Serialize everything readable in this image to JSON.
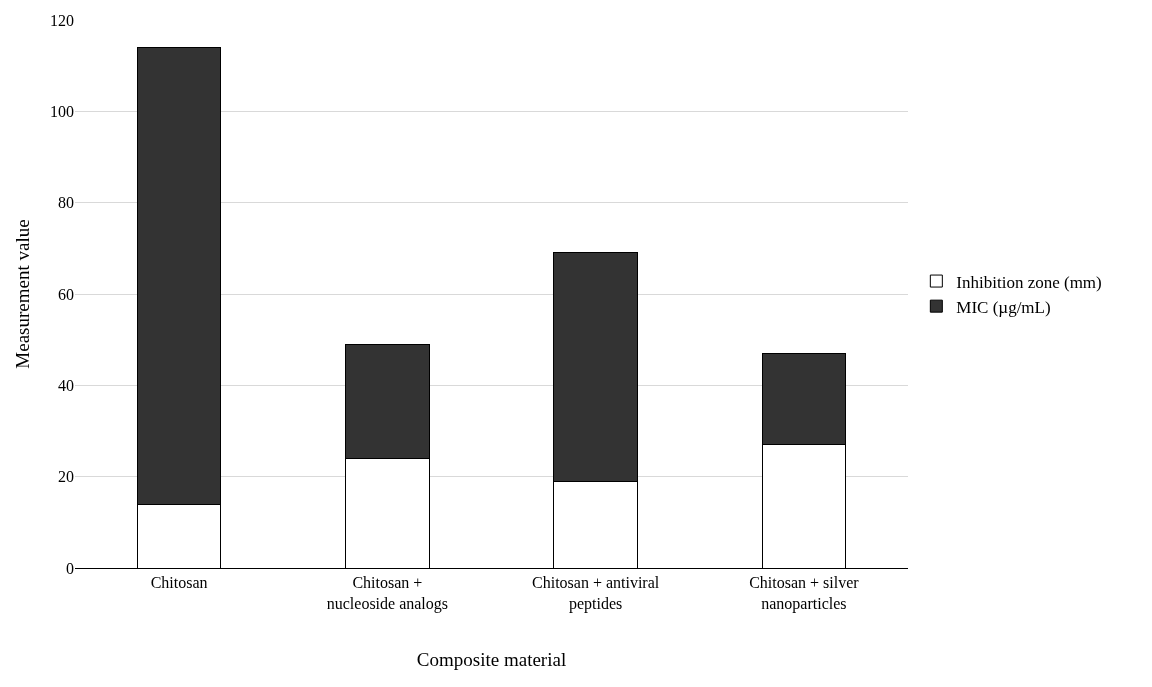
{
  "chart_data": {
    "type": "bar",
    "stacked": true,
    "xlabel": "Composite material",
    "ylabel": "Measurement value",
    "categories": [
      "Chitosan",
      "Chitosan + nucleoside analogs",
      "Chitosan + antiviral peptides",
      "Chitosan + silver nanoparticles"
    ],
    "series": [
      {
        "name": "Inhibition zone (mm)",
        "color": "#ffffff",
        "values": [
          14,
          24,
          19,
          27
        ]
      },
      {
        "name": "MIC (µg/mL)",
        "color": "#333333",
        "values": [
          100,
          25,
          50,
          20
        ]
      }
    ],
    "ylim": [
      0,
      120
    ],
    "yticks": [
      0,
      20,
      40,
      60,
      80,
      100,
      120
    ],
    "grid": "y",
    "legend": "right"
  }
}
